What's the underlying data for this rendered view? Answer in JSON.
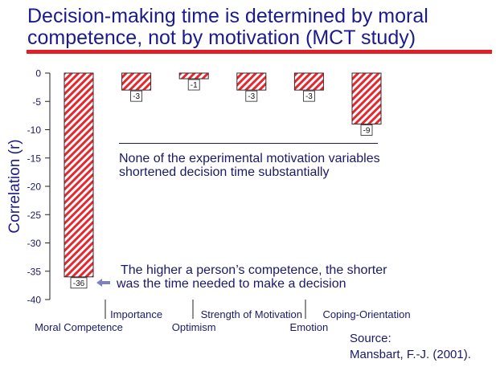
{
  "title": {
    "line1": "Decision-making time is determined by moral",
    "line2": "competence, not by motivation (MCT study)"
  },
  "colors": {
    "title": "#1b1b8c",
    "rule": "#e41e26",
    "bar_hatch": "#e8262d",
    "bar_outline": "#3a2a2a",
    "text": "#1a1a66",
    "arrow": "#8080c0"
  },
  "chart_data": {
    "type": "bar",
    "categories": [
      "Moral Competence",
      "Importance",
      "Optimism",
      "Strength of Motivation",
      "Emotion",
      "Coping-Orientation"
    ],
    "values": [
      -36,
      -3,
      -1,
      -3,
      -3,
      -9
    ],
    "xlabel": "",
    "ylabel": "Correlation (r)",
    "ylim": [
      -40,
      0
    ],
    "yticks": [
      0,
      -5,
      -10,
      -15,
      -20,
      -25,
      -30,
      -35,
      -40
    ],
    "data_labels": true,
    "grid": false
  },
  "annotations": {
    "motivation_note": [
      "None of the experimental motivation variables",
      "shortened decision time substantially"
    ],
    "competence_note": [
      "The higher a person’s competence, the shorter",
      "was the time needed to make a decision"
    ]
  },
  "source": {
    "label": "Source:",
    "citation": "Mansbart, F.-J. (2001)."
  }
}
